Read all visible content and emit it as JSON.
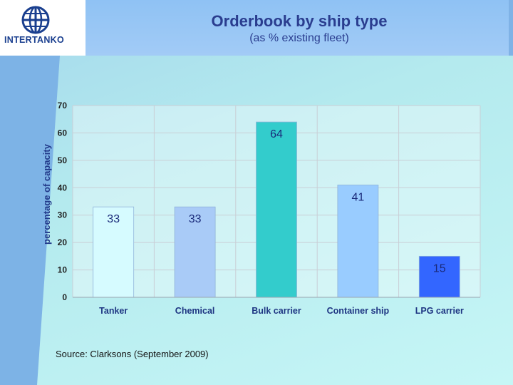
{
  "logo": {
    "text": "INTERTANKO"
  },
  "header": {
    "title": "Orderbook by ship type",
    "subtitle": "(as % existing fleet)"
  },
  "source": "Source: Clarksons (September 2009)",
  "chart_data": {
    "type": "bar",
    "categories": [
      "Tanker",
      "Chemical",
      "Bulk carrier",
      "Container ship",
      "LPG carrier"
    ],
    "values": [
      33,
      33,
      64,
      41,
      15
    ],
    "data_labels": [
      "33",
      "33",
      "64",
      "41",
      "15"
    ],
    "bar_colors": [
      "#d6fbff",
      "#a9cbf7",
      "#33cccc",
      "#99ccff",
      "#3366ff"
    ],
    "ylabel": "percentage of capacity",
    "ylim": [
      0,
      70
    ],
    "yticks": [
      0,
      10,
      20,
      30,
      40,
      50,
      60,
      70
    ],
    "grid": true,
    "legend": "none"
  }
}
